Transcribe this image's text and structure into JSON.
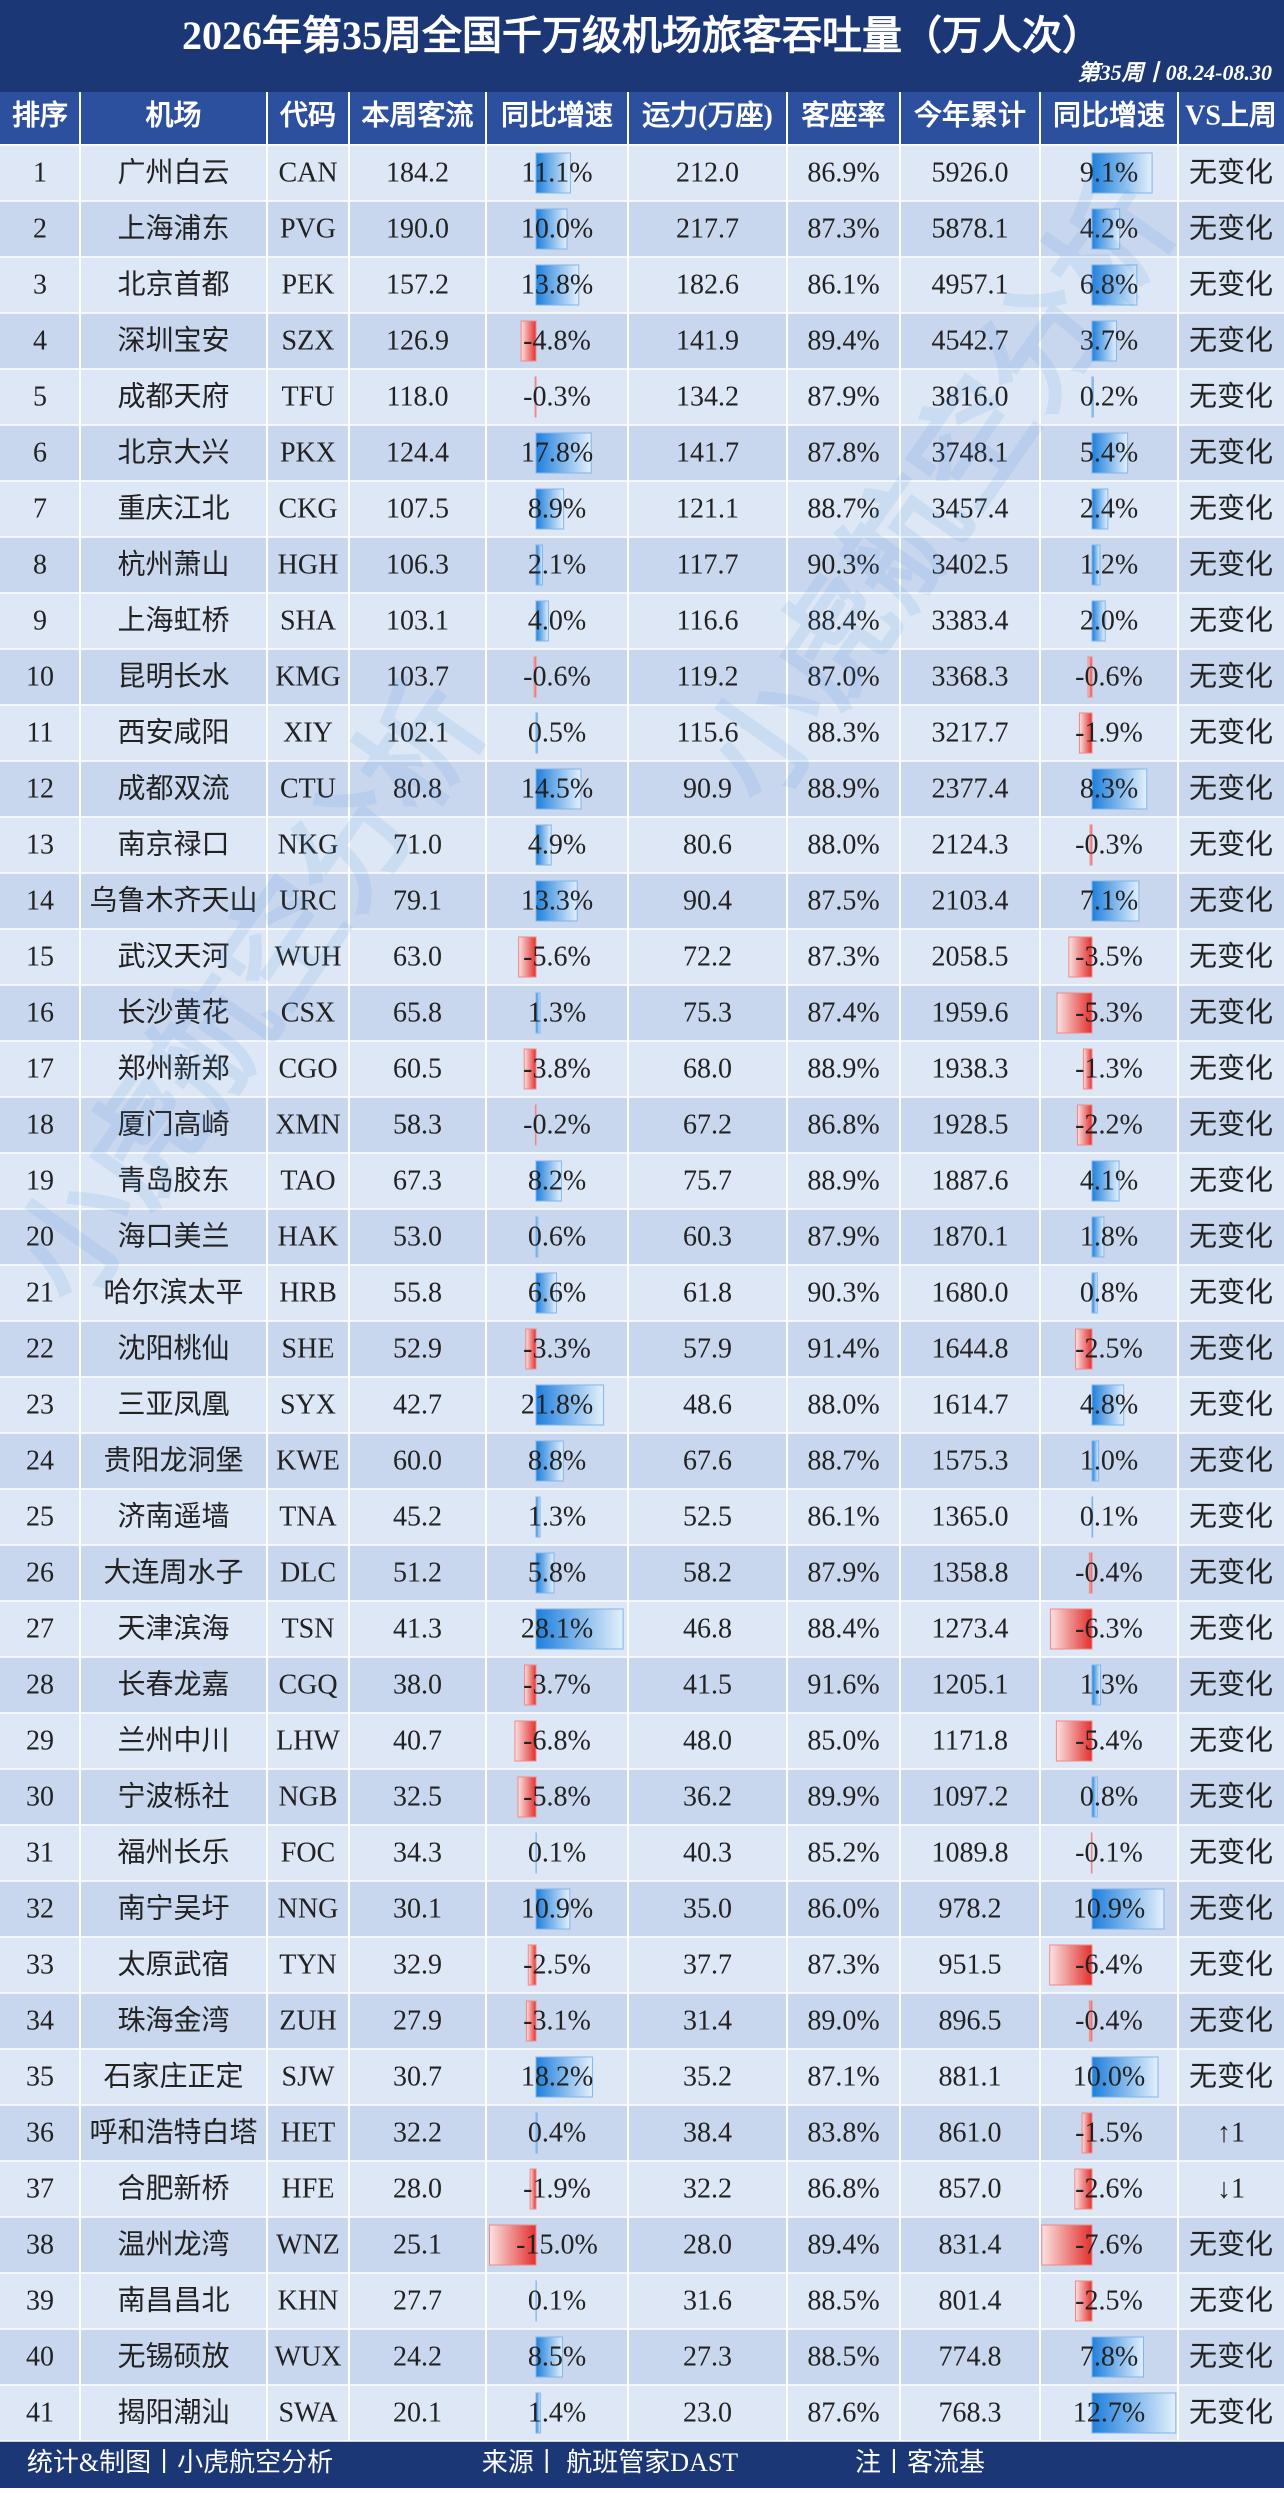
{
  "title": "2026年第35周全国千万级机场旅客吞吐量（万人次）",
  "subtitle": "第35周丨08.24-08.30",
  "watermark": "小虎航空分析",
  "table": {
    "headers": [
      "排序",
      "机场",
      "代码",
      "本周客流",
      "同比增速",
      "运力(万座)",
      "客座率",
      "今年累计",
      "同比增速",
      "VS上周"
    ],
    "rows": [
      [
        "1",
        "广州白云",
        "CAN",
        "184.2",
        "11.1%",
        "212.0",
        "86.9%",
        "5926.0",
        "9.1%",
        "无变化"
      ],
      [
        "2",
        "上海浦东",
        "PVG",
        "190.0",
        "10.0%",
        "217.7",
        "87.3%",
        "5878.1",
        "4.2%",
        "无变化"
      ],
      [
        "3",
        "北京首都",
        "PEK",
        "157.2",
        "13.8%",
        "182.6",
        "86.1%",
        "4957.1",
        "6.8%",
        "无变化"
      ],
      [
        "4",
        "深圳宝安",
        "SZX",
        "126.9",
        "-4.8%",
        "141.9",
        "89.4%",
        "4542.7",
        "3.7%",
        "无变化"
      ],
      [
        "5",
        "成都天府",
        "TFU",
        "118.0",
        "-0.3%",
        "134.2",
        "87.9%",
        "3816.0",
        "0.2%",
        "无变化"
      ],
      [
        "6",
        "北京大兴",
        "PKX",
        "124.4",
        "17.8%",
        "141.7",
        "87.8%",
        "3748.1",
        "5.4%",
        "无变化"
      ],
      [
        "7",
        "重庆江北",
        "CKG",
        "107.5",
        "8.9%",
        "121.1",
        "88.7%",
        "3457.4",
        "2.4%",
        "无变化"
      ],
      [
        "8",
        "杭州萧山",
        "HGH",
        "106.3",
        "2.1%",
        "117.7",
        "90.3%",
        "3402.5",
        "1.2%",
        "无变化"
      ],
      [
        "9",
        "上海虹桥",
        "SHA",
        "103.1",
        "4.0%",
        "116.6",
        "88.4%",
        "3383.4",
        "2.0%",
        "无变化"
      ],
      [
        "10",
        "昆明长水",
        "KMG",
        "103.7",
        "-0.6%",
        "119.2",
        "87.0%",
        "3368.3",
        "-0.6%",
        "无变化"
      ],
      [
        "11",
        "西安咸阳",
        "XIY",
        "102.1",
        "0.5%",
        "115.6",
        "88.3%",
        "3217.7",
        "-1.9%",
        "无变化"
      ],
      [
        "12",
        "成都双流",
        "CTU",
        "80.8",
        "14.5%",
        "90.9",
        "88.9%",
        "2377.4",
        "8.3%",
        "无变化"
      ],
      [
        "13",
        "南京禄口",
        "NKG",
        "71.0",
        "4.9%",
        "80.6",
        "88.0%",
        "2124.3",
        "-0.3%",
        "无变化"
      ],
      [
        "14",
        "乌鲁木齐天山",
        "URC",
        "79.1",
        "13.3%",
        "90.4",
        "87.5%",
        "2103.4",
        "7.1%",
        "无变化"
      ],
      [
        "15",
        "武汉天河",
        "WUH",
        "63.0",
        "-5.6%",
        "72.2",
        "87.3%",
        "2058.5",
        "-3.5%",
        "无变化"
      ],
      [
        "16",
        "长沙黄花",
        "CSX",
        "65.8",
        "1.3%",
        "75.3",
        "87.4%",
        "1959.6",
        "-5.3%",
        "无变化"
      ],
      [
        "17",
        "郑州新郑",
        "CGO",
        "60.5",
        "-3.8%",
        "68.0",
        "88.9%",
        "1938.3",
        "-1.3%",
        "无变化"
      ],
      [
        "18",
        "厦门高崎",
        "XMN",
        "58.3",
        "-0.2%",
        "67.2",
        "86.8%",
        "1928.5",
        "-2.2%",
        "无变化"
      ],
      [
        "19",
        "青岛胶东",
        "TAO",
        "67.3",
        "8.2%",
        "75.7",
        "88.9%",
        "1887.6",
        "4.1%",
        "无变化"
      ],
      [
        "20",
        "海口美兰",
        "HAK",
        "53.0",
        "0.6%",
        "60.3",
        "87.9%",
        "1870.1",
        "1.8%",
        "无变化"
      ],
      [
        "21",
        "哈尔滨太平",
        "HRB",
        "55.8",
        "6.6%",
        "61.8",
        "90.3%",
        "1680.0",
        "0.8%",
        "无变化"
      ],
      [
        "22",
        "沈阳桃仙",
        "SHE",
        "52.9",
        "-3.3%",
        "57.9",
        "91.4%",
        "1644.8",
        "-2.5%",
        "无变化"
      ],
      [
        "23",
        "三亚凤凰",
        "SYX",
        "42.7",
        "21.8%",
        "48.6",
        "88.0%",
        "1614.7",
        "4.8%",
        "无变化"
      ],
      [
        "24",
        "贵阳龙洞堡",
        "KWE",
        "60.0",
        "8.8%",
        "67.6",
        "88.7%",
        "1575.3",
        "1.0%",
        "无变化"
      ],
      [
        "25",
        "济南遥墙",
        "TNA",
        "45.2",
        "1.3%",
        "52.5",
        "86.1%",
        "1365.0",
        "0.1%",
        "无变化"
      ],
      [
        "26",
        "大连周水子",
        "DLC",
        "51.2",
        "5.8%",
        "58.2",
        "87.9%",
        "1358.8",
        "-0.4%",
        "无变化"
      ],
      [
        "27",
        "天津滨海",
        "TSN",
        "41.3",
        "28.1%",
        "46.8",
        "88.4%",
        "1273.4",
        "-6.3%",
        "无变化"
      ],
      [
        "28",
        "长春龙嘉",
        "CGQ",
        "38.0",
        "-3.7%",
        "41.5",
        "91.6%",
        "1205.1",
        "1.3%",
        "无变化"
      ],
      [
        "29",
        "兰州中川",
        "LHW",
        "40.7",
        "-6.8%",
        "48.0",
        "85.0%",
        "1171.8",
        "-5.4%",
        "无变化"
      ],
      [
        "30",
        "宁波栎社",
        "NGB",
        "32.5",
        "-5.8%",
        "36.2",
        "89.9%",
        "1097.2",
        "0.8%",
        "无变化"
      ],
      [
        "31",
        "福州长乐",
        "FOC",
        "34.3",
        "0.1%",
        "40.3",
        "85.2%",
        "1089.8",
        "-0.1%",
        "无变化"
      ],
      [
        "32",
        "南宁吴圩",
        "NNG",
        "30.1",
        "10.9%",
        "35.0",
        "86.0%",
        "978.2",
        "10.9%",
        "无变化"
      ],
      [
        "33",
        "太原武宿",
        "TYN",
        "32.9",
        "-2.5%",
        "37.7",
        "87.3%",
        "951.5",
        "-6.4%",
        "无变化"
      ],
      [
        "34",
        "珠海金湾",
        "ZUH",
        "27.9",
        "-3.1%",
        "31.4",
        "89.0%",
        "896.5",
        "-0.4%",
        "无变化"
      ],
      [
        "35",
        "石家庄正定",
        "SJW",
        "30.7",
        "18.2%",
        "35.2",
        "87.1%",
        "881.1",
        "10.0%",
        "无变化"
      ],
      [
        "36",
        "呼和浩特白塔",
        "HET",
        "32.2",
        "0.4%",
        "38.4",
        "83.8%",
        "861.0",
        "-1.5%",
        "↑1"
      ],
      [
        "37",
        "合肥新桥",
        "HFE",
        "28.0",
        "-1.9%",
        "32.2",
        "86.8%",
        "857.0",
        "-2.6%",
        "↓1"
      ],
      [
        "38",
        "温州龙湾",
        "WNZ",
        "25.1",
        "-15.0%",
        "28.0",
        "89.4%",
        "831.4",
        "-7.6%",
        "无变化"
      ],
      [
        "39",
        "南昌昌北",
        "KHN",
        "27.7",
        "0.1%",
        "31.6",
        "88.5%",
        "801.4",
        "-2.5%",
        "无变化"
      ],
      [
        "40",
        "无锡硕放",
        "WUX",
        "24.2",
        "8.5%",
        "27.3",
        "88.5%",
        "774.8",
        "7.8%",
        "无变化"
      ],
      [
        "41",
        "揭阳潮汕",
        "SWA",
        "20.1",
        "1.4%",
        "23.0",
        "87.6%",
        "768.3",
        "12.7%",
        "无变化"
      ]
    ],
    "week_yoy": [
      11.1,
      10.0,
      13.8,
      -4.8,
      -0.3,
      17.8,
      8.9,
      2.1,
      4.0,
      -0.6,
      0.5,
      14.5,
      4.9,
      13.3,
      -5.6,
      1.3,
      -3.8,
      -0.2,
      8.2,
      0.6,
      6.6,
      -3.3,
      21.8,
      8.8,
      1.3,
      5.8,
      28.1,
      -3.7,
      -6.8,
      -5.8,
      0.1,
      10.9,
      -2.5,
      -3.1,
      18.2,
      0.4,
      -1.9,
      -15.0,
      0.1,
      8.5,
      1.4
    ],
    "ytd_yoy": [
      9.1,
      4.2,
      6.8,
      3.7,
      0.2,
      5.4,
      2.4,
      1.2,
      2.0,
      -0.6,
      -1.9,
      8.3,
      -0.3,
      7.1,
      -3.5,
      -5.3,
      -1.3,
      -2.2,
      4.1,
      1.8,
      0.8,
      -2.5,
      4.8,
      1.0,
      0.1,
      -0.4,
      -6.3,
      1.3,
      -5.4,
      0.8,
      -0.1,
      10.9,
      -6.4,
      -0.4,
      10.0,
      -1.5,
      -2.6,
      -7.6,
      -2.5,
      7.8,
      12.7
    ]
  },
  "footer": [
    "统计&制图丨小虎航空分析",
    "来源丨 航班管家DAST",
    "注丨客流基"
  ]
}
